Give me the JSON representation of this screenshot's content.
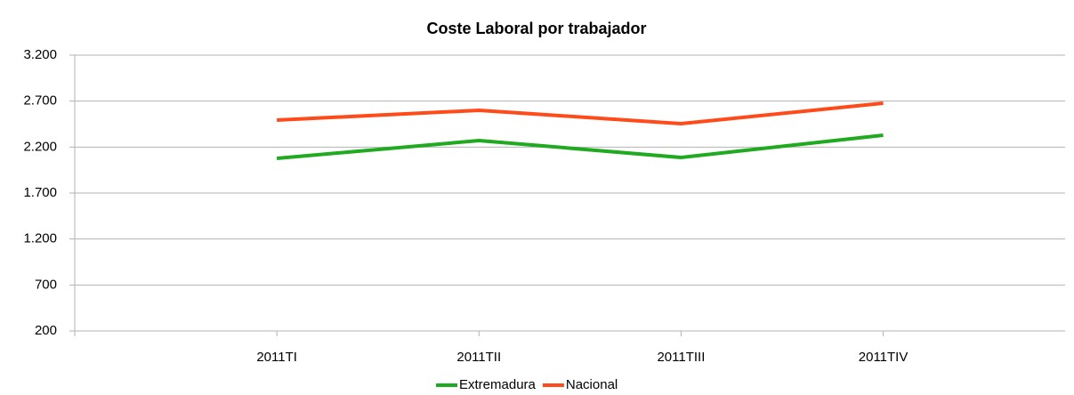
{
  "chart_data": {
    "type": "line",
    "title": "Coste Laboral por trabajador",
    "categories": [
      "2011TI",
      "2011TII",
      "2011TIII",
      "2011TIV"
    ],
    "series": [
      {
        "name": "Extremadura",
        "color": "#1faa1f",
        "values": [
          2077,
          2271,
          2087,
          2329
        ]
      },
      {
        "name": "Nacional",
        "color": "#ff4a1a",
        "values": [
          2494,
          2600,
          2455,
          2677
        ]
      }
    ],
    "ylim": [
      200,
      3200
    ],
    "yticks": [
      200,
      700,
      {
        "value": 1200,
        "label": "1.200"
      },
      {
        "value": 1700,
        "label": "1.700"
      },
      {
        "value": 2200,
        "label": "2.200"
      },
      {
        "value": 2700,
        "label": "2.700"
      },
      {
        "value": 3200,
        "label": "3.200"
      }
    ],
    "grid": true,
    "legend": "bottom"
  }
}
